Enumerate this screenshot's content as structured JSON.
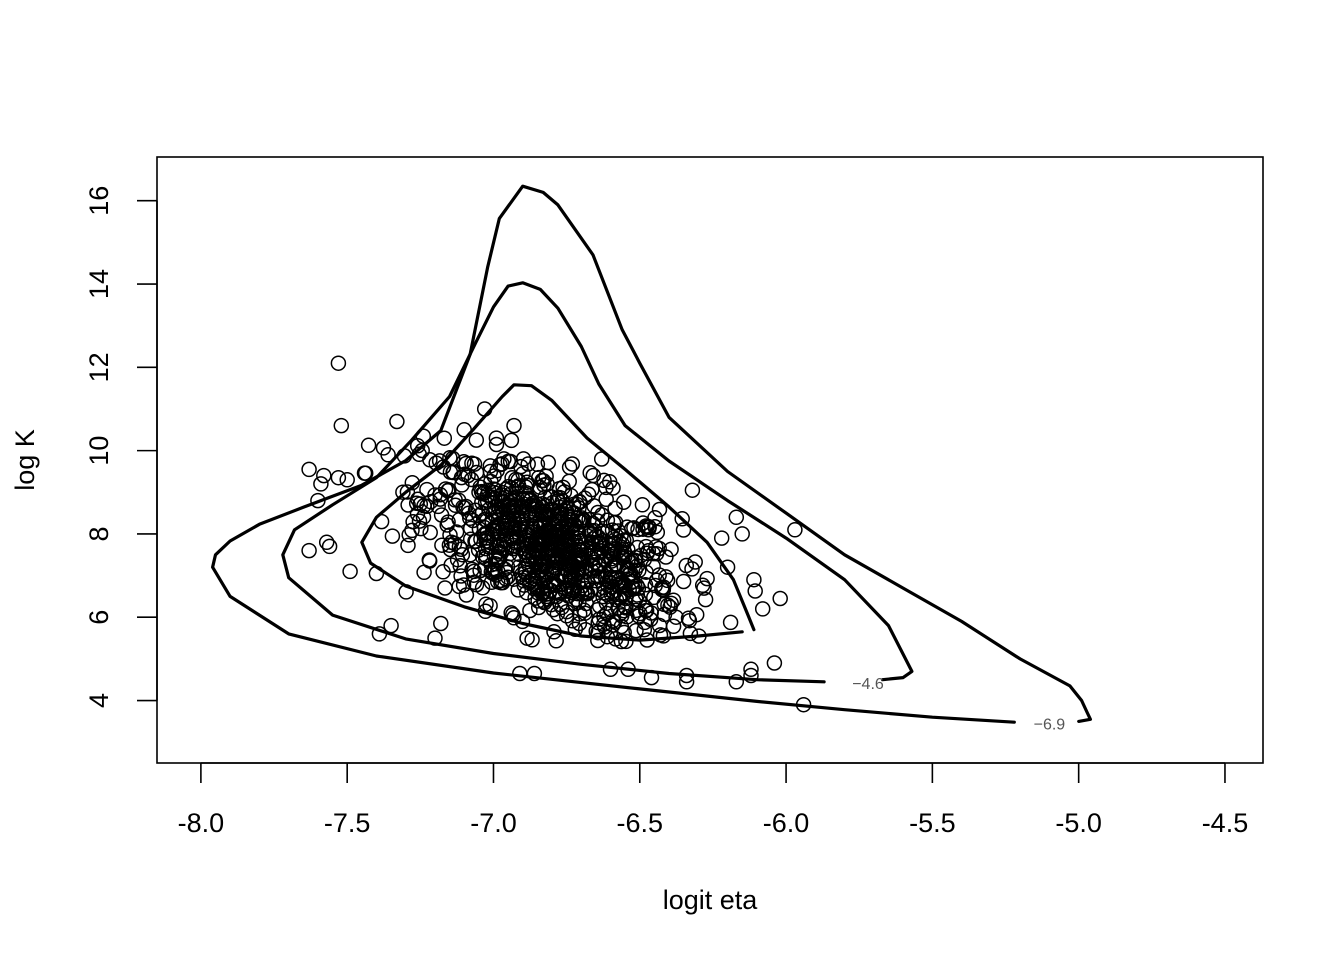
{
  "chart_data": {
    "type": "scatter",
    "xlabel": "logit eta",
    "ylabel": "log K",
    "xlim": [
      -8.15,
      -4.37
    ],
    "ylim": [
      2.5,
      17.05
    ],
    "x_ticks": [
      -8.0,
      -7.5,
      -7.0,
      -6.5,
      -6.0,
      -5.5,
      -5.0,
      -4.5
    ],
    "x_tick_labels": [
      "-8.0",
      "-7.5",
      "-7.0",
      "-6.5",
      "-6.0",
      "-5.5",
      "-5.0",
      "-4.5"
    ],
    "y_ticks": [
      4,
      6,
      8,
      10,
      12,
      14,
      16
    ],
    "y_tick_labels": [
      "4",
      "6",
      "8",
      "10",
      "12",
      "14",
      "16"
    ],
    "grid": false,
    "contours": [
      {
        "level_label": "−6.9",
        "label_at": [
          -5.1,
          3.45
        ],
        "points": [
          [
            -5.22,
            3.48
          ],
          [
            -5.5,
            3.6
          ],
          [
            -5.8,
            3.78
          ],
          [
            -6.1,
            3.98
          ],
          [
            -6.5,
            4.28
          ],
          [
            -7.0,
            4.66
          ],
          [
            -7.4,
            5.07
          ],
          [
            -7.7,
            5.6
          ],
          [
            -7.9,
            6.5
          ],
          [
            -7.96,
            7.2
          ],
          [
            -7.95,
            7.5
          ],
          [
            -7.9,
            7.83
          ],
          [
            -7.8,
            8.23
          ],
          [
            -7.65,
            8.64
          ],
          [
            -7.45,
            9.17
          ],
          [
            -7.3,
            9.76
          ],
          [
            -7.18,
            10.48
          ],
          [
            -7.08,
            12.31
          ],
          [
            -7.02,
            14.4
          ],
          [
            -6.98,
            15.57
          ],
          [
            -6.9,
            16.35
          ],
          [
            -6.83,
            16.2
          ],
          [
            -6.78,
            15.9
          ],
          [
            -6.66,
            14.7
          ],
          [
            -6.56,
            12.9
          ],
          [
            -6.5,
            12.1
          ],
          [
            -6.4,
            10.8
          ],
          [
            -6.2,
            9.5
          ],
          [
            -6.0,
            8.5
          ],
          [
            -5.8,
            7.5
          ],
          [
            -5.6,
            6.7
          ],
          [
            -5.4,
            5.9
          ],
          [
            -5.2,
            5.0
          ],
          [
            -5.03,
            4.35
          ],
          [
            -4.99,
            4.0
          ],
          [
            -4.97,
            3.7
          ],
          [
            -4.96,
            3.55
          ],
          [
            -5.0,
            3.5
          ]
        ]
      },
      {
        "level_label": "−4.6",
        "label_at": [
          -5.72,
          4.42
        ],
        "points": [
          [
            -5.87,
            4.45
          ],
          [
            -6.1,
            4.5
          ],
          [
            -6.4,
            4.65
          ],
          [
            -6.7,
            4.87
          ],
          [
            -7.0,
            5.13
          ],
          [
            -7.3,
            5.48
          ],
          [
            -7.55,
            6.05
          ],
          [
            -7.7,
            6.95
          ],
          [
            -7.72,
            7.5
          ],
          [
            -7.68,
            8.1
          ],
          [
            -7.55,
            8.7
          ],
          [
            -7.4,
            9.35
          ],
          [
            -7.28,
            10.25
          ],
          [
            -7.15,
            11.3
          ],
          [
            -7.06,
            12.6
          ],
          [
            -7.0,
            13.45
          ],
          [
            -6.95,
            13.95
          ],
          [
            -6.9,
            14.03
          ],
          [
            -6.84,
            13.87
          ],
          [
            -6.78,
            13.42
          ],
          [
            -6.7,
            12.5
          ],
          [
            -6.64,
            11.6
          ],
          [
            -6.55,
            10.6
          ],
          [
            -6.4,
            9.75
          ],
          [
            -6.2,
            8.8
          ],
          [
            -6.0,
            7.9
          ],
          [
            -5.8,
            6.9
          ],
          [
            -5.65,
            5.8
          ],
          [
            -5.57,
            4.7
          ],
          [
            -5.6,
            4.55
          ],
          [
            -5.67,
            4.5
          ]
        ]
      },
      {
        "level_label": "",
        "points": [
          [
            -6.15,
            5.65
          ],
          [
            -6.3,
            5.55
          ],
          [
            -6.5,
            5.45
          ],
          [
            -6.7,
            5.55
          ],
          [
            -6.9,
            5.85
          ],
          [
            -7.1,
            6.25
          ],
          [
            -7.3,
            6.75
          ],
          [
            -7.42,
            7.3
          ],
          [
            -7.45,
            7.8
          ],
          [
            -7.4,
            8.4
          ],
          [
            -7.3,
            9.0
          ],
          [
            -7.18,
            9.65
          ],
          [
            -7.07,
            10.5
          ],
          [
            -6.97,
            11.3
          ],
          [
            -6.93,
            11.58
          ],
          [
            -6.87,
            11.56
          ],
          [
            -6.8,
            11.2
          ],
          [
            -6.68,
            10.3
          ],
          [
            -6.55,
            9.55
          ],
          [
            -6.4,
            8.65
          ],
          [
            -6.27,
            7.8
          ],
          [
            -6.18,
            6.9
          ],
          [
            -6.13,
            6.05
          ],
          [
            -6.11,
            5.7
          ]
        ]
      }
    ],
    "outlier_points": [
      [
        -7.53,
        12.1
      ],
      [
        -7.52,
        10.6
      ],
      [
        -7.33,
        10.7
      ],
      [
        -7.03,
        11.0
      ],
      [
        -7.63,
        9.55
      ],
      [
        -7.59,
        9.2
      ],
      [
        -7.58,
        9.4
      ],
      [
        -7.6,
        8.8
      ],
      [
        -7.63,
        7.6
      ],
      [
        -7.57,
        7.8
      ],
      [
        -7.56,
        7.7
      ],
      [
        -7.49,
        7.1
      ],
      [
        -7.4,
        7.05
      ],
      [
        -7.39,
        5.6
      ],
      [
        -7.35,
        5.8
      ],
      [
        -7.2,
        5.5
      ],
      [
        -7.18,
        5.85
      ],
      [
        -6.91,
        4.65
      ],
      [
        -6.86,
        4.65
      ],
      [
        -6.6,
        4.75
      ],
      [
        -6.54,
        4.75
      ],
      [
        -6.46,
        4.55
      ],
      [
        -6.34,
        4.45
      ],
      [
        -6.34,
        4.6
      ],
      [
        -6.17,
        4.45
      ],
      [
        -6.12,
        4.6
      ],
      [
        -6.12,
        4.75
      ],
      [
        -6.04,
        4.9
      ],
      [
        -5.94,
        3.9
      ],
      [
        -5.97,
        8.1
      ],
      [
        -6.17,
        8.4
      ],
      [
        -6.15,
        8.0
      ],
      [
        -6.11,
        6.9
      ],
      [
        -6.08,
        6.2
      ],
      [
        -6.02,
        6.45
      ],
      [
        -6.2,
        7.2
      ],
      [
        -6.22,
        7.9
      ],
      [
        -6.32,
        9.05
      ],
      [
        -6.63,
        9.8
      ],
      [
        -6.93,
        10.6
      ],
      [
        -6.99,
        10.3
      ],
      [
        -7.1,
        10.5
      ],
      [
        -7.24,
        10.35
      ],
      [
        -7.36,
        9.9
      ],
      [
        -7.53,
        9.35
      ],
      [
        -7.5,
        9.3
      ]
    ]
  }
}
